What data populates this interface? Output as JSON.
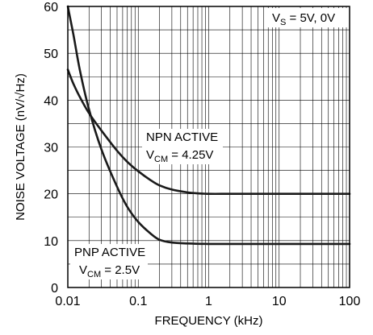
{
  "chart_data": {
    "type": "line",
    "x_scale": "log",
    "xlabel": "FREQUENCY (kHz)",
    "ylabel": "NOISE VOLTAGE (nV/√Hz)",
    "xlim": [
      0.01,
      100
    ],
    "ylim": [
      0,
      60
    ],
    "x_tick_labels": [
      "0.01",
      "0.1",
      "1",
      "10",
      "100"
    ],
    "y_tick_labels": [
      "0",
      "10",
      "20",
      "30",
      "40",
      "50",
      "60"
    ],
    "grid": true,
    "annotations": {
      "condition": {
        "main": "V",
        "sub": "S",
        "rest": " = 5V, 0V"
      },
      "npn_line1": "NPN ACTIVE",
      "npn_line2": {
        "main": "V",
        "sub": "CM",
        "rest": " = 4.25V"
      },
      "pnp_line1": "PNP ACTIVE",
      "pnp_line2": {
        "main": "V",
        "sub": "CM",
        "rest": " = 2.5V"
      }
    },
    "series": [
      {
        "x": [
          0.01,
          0.012,
          0.015,
          0.02,
          0.03,
          0.05,
          0.07,
          0.1,
          0.15,
          0.2,
          0.3,
          0.5,
          0.7,
          1,
          2,
          5,
          10,
          100
        ],
        "values": [
          46.5,
          43.5,
          40.5,
          37.2,
          33.5,
          29.2,
          26.8,
          24.8,
          22.9,
          21.8,
          20.9,
          20.3,
          20.1,
          20,
          20,
          20,
          20,
          20
        ]
      },
      {
        "x": [
          0.01,
          0.012,
          0.015,
          0.02,
          0.03,
          0.05,
          0.07,
          0.1,
          0.15,
          0.2,
          0.3,
          0.5,
          1,
          2,
          5,
          10,
          100
        ],
        "values": [
          60,
          54,
          46,
          38,
          29.5,
          21.5,
          17.2,
          14,
          11.5,
          10.2,
          9.6,
          9.4,
          9.3,
          9.3,
          9.3,
          9.3,
          9.3
        ]
      }
    ]
  }
}
